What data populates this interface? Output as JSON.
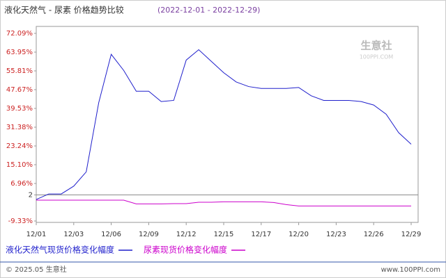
{
  "chart_data": {
    "type": "line",
    "title": "液化天然气 - 尿素 价格趋势比较",
    "subtitle": "(2022-12-01 - 2022-12-29)",
    "categories": [
      "12/01",
      null,
      null,
      "12/03",
      null,
      null,
      "12/06",
      null,
      null,
      "12/09",
      null,
      null,
      "12/12",
      null,
      null,
      "12/15",
      null,
      null,
      "12/17",
      null,
      null,
      "12/20",
      null,
      null,
      "12/23",
      null,
      null,
      "12/26",
      null,
      null,
      "12/29"
    ],
    "series": [
      {
        "name": "液化天然气现货价格变化幅度",
        "color": "#1f1fcc",
        "values": [
          0,
          2.4,
          2.4,
          5.8,
          12,
          42,
          63,
          56,
          47,
          47,
          42.5,
          43,
          60.5,
          65,
          60,
          55,
          51,
          49,
          48.2,
          48.2,
          48.2,
          48.6,
          45,
          43,
          43,
          43,
          42.5,
          41,
          37,
          29,
          24
        ]
      },
      {
        "name": "尿素现货价格变化幅度",
        "color": "#cc00cc",
        "values": [
          -0.3,
          -0.3,
          -0.3,
          -0.3,
          -0.3,
          -0.3,
          -0.3,
          -0.3,
          -1.9,
          -1.9,
          -1.9,
          -1.8,
          -1.8,
          -1.2,
          -1.2,
          -1.0,
          -1.0,
          -1.0,
          -1.0,
          -1.3,
          -2.2,
          -2.8,
          -2.8,
          -2.8,
          -2.8,
          -2.8,
          -2.8,
          -2.8,
          -2.8,
          -2.8,
          -2.8
        ]
      }
    ],
    "ylim": [
      -9.33,
      72.09
    ],
    "yticks": [
      {
        "value": -9.33,
        "label": "-9.33%"
      },
      2,
      {
        "value": 6.96,
        "label": "6.96%"
      },
      {
        "value": 15.1,
        "label": "15.10%"
      },
      {
        "value": 23.24,
        "label": "23.24%"
      },
      {
        "value": 31.38,
        "label": "31.38%"
      },
      {
        "value": 39.53,
        "label": "39.53%"
      },
      {
        "value": 47.67,
        "label": "47.67%"
      },
      {
        "value": 55.81,
        "label": "55.81%"
      },
      {
        "value": 63.95,
        "label": "63.95%"
      },
      {
        "value": 72.09,
        "label": "72.09%"
      }
    ],
    "watermark": {
      "name": "生意社",
      "url": "100PPI.COM"
    },
    "footer_left": "© 2025.05 生意社",
    "footer_right": "www.100PPI.com"
  }
}
